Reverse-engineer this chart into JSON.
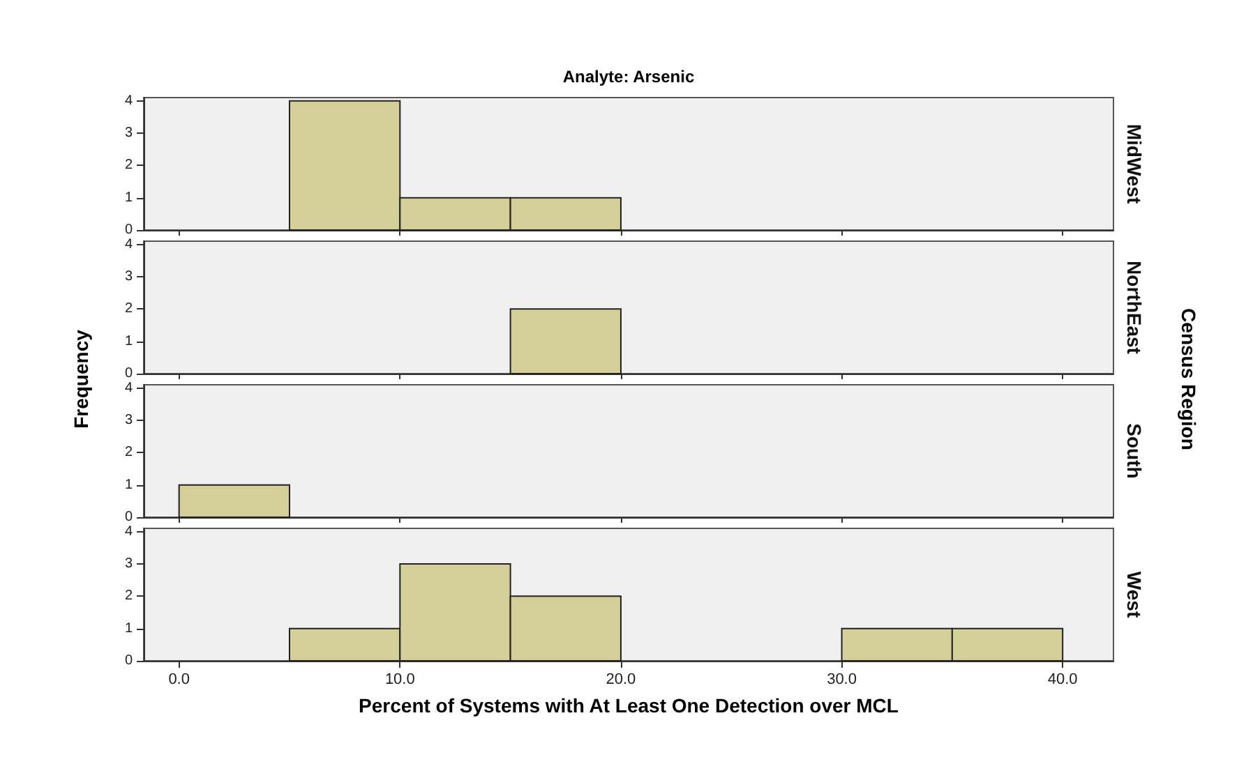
{
  "chart_data": [
    {
      "type": "histogram",
      "title": "Analyte: Arsenic",
      "ylabel": "Frequency",
      "annotations": [
        "Census Region"
      ],
      "y2label": "MidWest",
      "bins": [
        0,
        5,
        10,
        15,
        20,
        25,
        30,
        35,
        40
      ],
      "values": [
        0,
        4,
        1,
        1,
        0,
        0,
        0,
        0
      ],
      "color": "#d4cf98",
      "xlim": [
        -1.6,
        42.3
      ],
      "ylim": [
        0,
        4.1
      ],
      "yticks": [
        0,
        1,
        2,
        3,
        4
      ],
      "xticks": [
        {
          "value": 0,
          "label": null
        },
        {
          "value": 10,
          "label": null
        },
        {
          "value": 20,
          "label": null
        },
        {
          "value": 30,
          "label": null
        },
        {
          "value": 40,
          "label": null
        }
      ],
      "tick_labels": "y"
    },
    {
      "type": "histogram",
      "y2label": "NorthEast",
      "bins": [
        0,
        5,
        10,
        15,
        20,
        25,
        30,
        35,
        40
      ],
      "values": [
        0,
        0,
        0,
        2,
        0,
        0,
        0,
        0
      ],
      "color": "#d4cf98",
      "xlim": [
        -1.6,
        42.3
      ],
      "ylim": [
        0,
        4.1
      ],
      "yticks": [
        0,
        1,
        2,
        3,
        4
      ],
      "xticks": [
        {
          "value": 0,
          "label": null
        },
        {
          "value": 10,
          "label": null
        },
        {
          "value": 20,
          "label": null
        },
        {
          "value": 30,
          "label": null
        },
        {
          "value": 40,
          "label": null
        }
      ],
      "tick_labels": "y"
    },
    {
      "type": "histogram",
      "y2label": "South",
      "bins": [
        0,
        5,
        10,
        15,
        20,
        25,
        30,
        35,
        40
      ],
      "values": [
        1,
        0,
        0,
        0,
        0,
        0,
        0,
        0
      ],
      "color": "#d4cf98",
      "xlim": [
        -1.6,
        42.3
      ],
      "ylim": [
        0,
        4.1
      ],
      "yticks": [
        0,
        1,
        2,
        3,
        4
      ],
      "xticks": [
        {
          "value": 0,
          "label": null
        },
        {
          "value": 10,
          "label": null
        },
        {
          "value": 20,
          "label": null
        },
        {
          "value": 30,
          "label": null
        },
        {
          "value": 40,
          "label": null
        }
      ],
      "tick_labels": "y"
    },
    {
      "type": "histogram",
      "xlabel": "Percent of Systems with At Least One Detection over MCL",
      "y2label": "West",
      "bins": [
        0,
        5,
        10,
        15,
        20,
        25,
        30,
        35,
        40
      ],
      "values": [
        0,
        1,
        3,
        2,
        0,
        0,
        1,
        1
      ],
      "color": "#d4cf98",
      "xlim": [
        -1.6,
        42.3
      ],
      "ylim": [
        0,
        4.1
      ],
      "yticks": [
        0,
        1,
        2,
        3,
        4
      ],
      "xticks": [
        {
          "value": 0,
          "label": "0.0"
        },
        {
          "value": 10,
          "label": "10.0"
        },
        {
          "value": 20,
          "label": "20.0"
        },
        {
          "value": 30,
          "label": "30.0"
        },
        {
          "value": 40,
          "label": "40.0"
        }
      ]
    }
  ]
}
